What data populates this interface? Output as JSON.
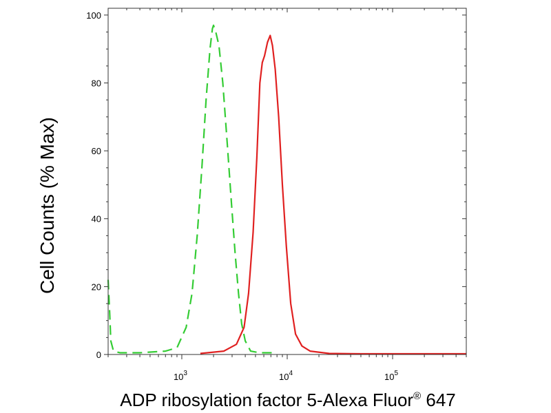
{
  "chart_data": {
    "type": "line",
    "xlabel": "ADP ribosylation factor 5-Alexa Fluor",
    "xlabel_superscript": "®",
    "xlabel_suffix": " 647",
    "ylabel": "Cell Counts (% Max)",
    "xscale": "log",
    "xlim": [
      200,
      500000
    ],
    "ylim": [
      0,
      102
    ],
    "yticks": [
      0,
      20,
      40,
      60,
      80,
      100
    ],
    "xticks": [
      {
        "value": 1000,
        "base": "10",
        "exp": "3"
      },
      {
        "value": 10000,
        "base": "10",
        "exp": "4"
      },
      {
        "value": 100000,
        "base": "10",
        "exp": "5"
      }
    ],
    "grid": false,
    "series": [
      {
        "color": "#33cc33",
        "style": "dashed",
        "points": [
          [
            200,
            22
          ],
          [
            207,
            12
          ],
          [
            212,
            4
          ],
          [
            225,
            1
          ],
          [
            260,
            0.5
          ],
          [
            400,
            0.5
          ],
          [
            700,
            1
          ],
          [
            900,
            2
          ],
          [
            1100,
            8
          ],
          [
            1250,
            18
          ],
          [
            1400,
            35
          ],
          [
            1550,
            55
          ],
          [
            1700,
            75
          ],
          [
            1850,
            90
          ],
          [
            1950,
            96
          ],
          [
            2000,
            97
          ],
          [
            2100,
            95
          ],
          [
            2250,
            91
          ],
          [
            2450,
            80
          ],
          [
            2700,
            62
          ],
          [
            2950,
            45
          ],
          [
            3200,
            30
          ],
          [
            3450,
            18
          ],
          [
            3700,
            9
          ],
          [
            4000,
            4
          ],
          [
            4500,
            1
          ],
          [
            5500,
            0.5
          ],
          [
            8000,
            0.5
          ]
        ]
      },
      {
        "color": "#e02020",
        "style": "solid",
        "points": [
          [
            1500,
            0.3
          ],
          [
            2500,
            1
          ],
          [
            3300,
            3
          ],
          [
            3900,
            8
          ],
          [
            4300,
            18
          ],
          [
            4750,
            36
          ],
          [
            5150,
            58
          ],
          [
            5500,
            80
          ],
          [
            5800,
            86
          ],
          [
            6100,
            88
          ],
          [
            6500,
            92
          ],
          [
            6900,
            94
          ],
          [
            7250,
            91
          ],
          [
            7700,
            84
          ],
          [
            8300,
            70
          ],
          [
            9000,
            50
          ],
          [
            9800,
            32
          ],
          [
            10800,
            15
          ],
          [
            12000,
            6
          ],
          [
            13800,
            2.5
          ],
          [
            16500,
            1
          ],
          [
            25000,
            0.3
          ],
          [
            50000,
            0.2
          ],
          [
            500000,
            0.2
          ]
        ]
      }
    ]
  }
}
